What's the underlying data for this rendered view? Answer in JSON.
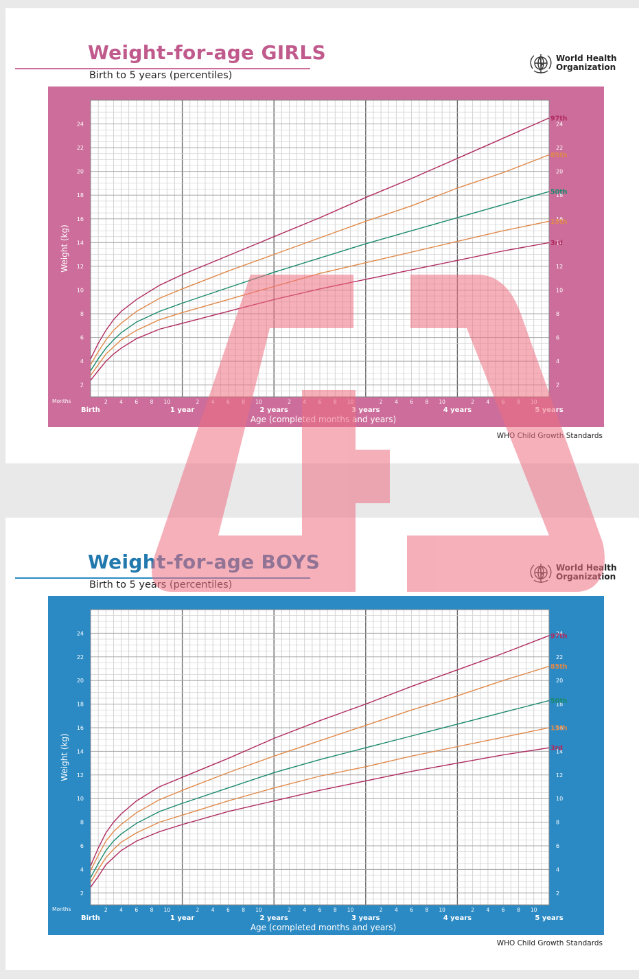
{
  "colors": {
    "girls_accent": "#cc6d9b",
    "girls_title": "#c05a8c",
    "boys_accent": "#2b8ac4",
    "boys_title": "#2179ad",
    "percentile_97": "#b02a5e",
    "percentile_85": "#e0894a",
    "percentile_50": "#1a8a6c",
    "percentile_15": "#e0894a",
    "percentile_3": "#b02a5e",
    "watermark": "#ee6f81"
  },
  "watermark": {
    "icon": "red-logo-watermark-icon"
  },
  "girls": {
    "title": "Weight-for-age GIRLS",
    "subtitle": "Birth to 5 years (percentiles)",
    "org_line1": "World Health",
    "org_line2": "Organization",
    "org_icon": "who-emblem-icon",
    "source": "WHO Child Growth Standards"
  },
  "boys": {
    "title": "Weight-for-age BOYS",
    "subtitle": "Birth to 5 years (percentiles)",
    "org_line1": "World Health",
    "org_line2": "Organization",
    "org_icon": "who-emblem-icon",
    "source": "WHO Child Growth Standards"
  },
  "chart_data": [
    {
      "type": "line",
      "chart": "girls",
      "xlabel": "Age (completed months and years)",
      "ylabel": "Weight (kg)",
      "months_label": "Months",
      "xlim": [
        0,
        60
      ],
      "ylim": [
        1,
        26
      ],
      "yticks": [
        2,
        4,
        6,
        8,
        10,
        12,
        14,
        16,
        18,
        20,
        22,
        24
      ],
      "month_ticks": [
        2,
        4,
        6,
        8,
        10
      ],
      "year_labels": [
        "Birth",
        "1 year",
        "2 years",
        "3 years",
        "4 years",
        "5 years"
      ],
      "grid": true,
      "series": [
        {
          "name": "97th",
          "color_key": "percentile_97",
          "points": [
            [
              0,
              4.2
            ],
            [
              1,
              5.5
            ],
            [
              2,
              6.6
            ],
            [
              3,
              7.5
            ],
            [
              4,
              8.2
            ],
            [
              6,
              9.2
            ],
            [
              9,
              10.4
            ],
            [
              12,
              11.3
            ],
            [
              18,
              12.9
            ],
            [
              24,
              14.5
            ],
            [
              30,
              16.1
            ],
            [
              36,
              17.8
            ],
            [
              42,
              19.4
            ],
            [
              48,
              21.1
            ],
            [
              54,
              22.8
            ],
            [
              60,
              24.5
            ]
          ]
        },
        {
          "name": "85th",
          "color_key": "percentile_85",
          "points": [
            [
              0,
              3.7
            ],
            [
              1,
              4.8
            ],
            [
              2,
              5.8
            ],
            [
              3,
              6.6
            ],
            [
              4,
              7.2
            ],
            [
              6,
              8.2
            ],
            [
              9,
              9.3
            ],
            [
              12,
              10.1
            ],
            [
              18,
              11.6
            ],
            [
              24,
              13.0
            ],
            [
              30,
              14.4
            ],
            [
              36,
              15.8
            ],
            [
              42,
              17.1
            ],
            [
              48,
              18.6
            ],
            [
              54,
              19.9
            ],
            [
              60,
              21.4
            ]
          ]
        },
        {
          "name": "50th",
          "color_key": "percentile_50",
          "points": [
            [
              0,
              3.2
            ],
            [
              1,
              4.2
            ],
            [
              2,
              5.1
            ],
            [
              3,
              5.8
            ],
            [
              4,
              6.4
            ],
            [
              6,
              7.3
            ],
            [
              9,
              8.2
            ],
            [
              12,
              8.9
            ],
            [
              18,
              10.2
            ],
            [
              24,
              11.5
            ],
            [
              30,
              12.7
            ],
            [
              36,
              13.9
            ],
            [
              42,
              15.0
            ],
            [
              48,
              16.1
            ],
            [
              54,
              17.2
            ],
            [
              60,
              18.3
            ]
          ]
        },
        {
          "name": "15th",
          "color_key": "percentile_15",
          "points": [
            [
              0,
              2.8
            ],
            [
              1,
              3.7
            ],
            [
              2,
              4.6
            ],
            [
              3,
              5.2
            ],
            [
              4,
              5.8
            ],
            [
              6,
              6.6
            ],
            [
              9,
              7.5
            ],
            [
              12,
              8.1
            ],
            [
              18,
              9.2
            ],
            [
              24,
              10.3
            ],
            [
              30,
              11.4
            ],
            [
              36,
              12.3
            ],
            [
              42,
              13.2
            ],
            [
              48,
              14.1
            ],
            [
              54,
              15.0
            ],
            [
              60,
              15.8
            ]
          ]
        },
        {
          "name": "3rd",
          "color_key": "percentile_3",
          "points": [
            [
              0,
              2.4
            ],
            [
              1,
              3.2
            ],
            [
              2,
              4.0
            ],
            [
              3,
              4.6
            ],
            [
              4,
              5.1
            ],
            [
              6,
              5.9
            ],
            [
              9,
              6.7
            ],
            [
              12,
              7.2
            ],
            [
              18,
              8.2
            ],
            [
              24,
              9.2
            ],
            [
              30,
              10.1
            ],
            [
              36,
              10.9
            ],
            [
              42,
              11.7
            ],
            [
              48,
              12.5
            ],
            [
              54,
              13.3
            ],
            [
              60,
              14.0
            ]
          ]
        }
      ]
    },
    {
      "type": "line",
      "chart": "boys",
      "xlabel": "Age (completed months and years)",
      "ylabel": "Weight (kg)",
      "months_label": "Months",
      "xlim": [
        0,
        60
      ],
      "ylim": [
        1,
        26
      ],
      "yticks": [
        2,
        4,
        6,
        8,
        10,
        12,
        14,
        16,
        18,
        20,
        22,
        24
      ],
      "month_ticks": [
        2,
        4,
        6,
        8,
        10
      ],
      "year_labels": [
        "Birth",
        "1 year",
        "2 years",
        "3 years",
        "4 years",
        "5 years"
      ],
      "grid": true,
      "series": [
        {
          "name": "97th",
          "color_key": "percentile_97",
          "points": [
            [
              0,
              4.3
            ],
            [
              1,
              5.8
            ],
            [
              2,
              7.1
            ],
            [
              3,
              8.0
            ],
            [
              4,
              8.7
            ],
            [
              6,
              9.8
            ],
            [
              9,
              11.0
            ],
            [
              12,
              11.8
            ],
            [
              18,
              13.4
            ],
            [
              24,
              15.1
            ],
            [
              30,
              16.6
            ],
            [
              36,
              18.0
            ],
            [
              42,
              19.5
            ],
            [
              48,
              20.9
            ],
            [
              54,
              22.3
            ],
            [
              60,
              23.8
            ]
          ]
        },
        {
          "name": "85th",
          "color_key": "percentile_85",
          "points": [
            [
              0,
              3.9
            ],
            [
              1,
              5.2
            ],
            [
              2,
              6.4
            ],
            [
              3,
              7.2
            ],
            [
              4,
              7.8
            ],
            [
              6,
              8.8
            ],
            [
              9,
              9.9
            ],
            [
              12,
              10.7
            ],
            [
              18,
              12.2
            ],
            [
              24,
              13.6
            ],
            [
              30,
              14.9
            ],
            [
              36,
              16.2
            ],
            [
              42,
              17.5
            ],
            [
              48,
              18.7
            ],
            [
              54,
              20.0
            ],
            [
              60,
              21.2
            ]
          ]
        },
        {
          "name": "50th",
          "color_key": "percentile_50",
          "points": [
            [
              0,
              3.3
            ],
            [
              1,
              4.5
            ],
            [
              2,
              5.6
            ],
            [
              3,
              6.4
            ],
            [
              4,
              7.0
            ],
            [
              6,
              7.9
            ],
            [
              9,
              8.9
            ],
            [
              12,
              9.6
            ],
            [
              18,
              10.9
            ],
            [
              24,
              12.2
            ],
            [
              30,
              13.3
            ],
            [
              36,
              14.3
            ],
            [
              42,
              15.3
            ],
            [
              48,
              16.3
            ],
            [
              54,
              17.3
            ],
            [
              60,
              18.3
            ]
          ]
        },
        {
          "name": "15th",
          "color_key": "percentile_15",
          "points": [
            [
              0,
              2.9
            ],
            [
              1,
              4.0
            ],
            [
              2,
              5.0
            ],
            [
              3,
              5.7
            ],
            [
              4,
              6.3
            ],
            [
              6,
              7.1
            ],
            [
              9,
              8.0
            ],
            [
              12,
              8.6
            ],
            [
              18,
              9.8
            ],
            [
              24,
              10.9
            ],
            [
              30,
              11.9
            ],
            [
              36,
              12.7
            ],
            [
              42,
              13.6
            ],
            [
              48,
              14.4
            ],
            [
              54,
              15.2
            ],
            [
              60,
              16.0
            ]
          ]
        },
        {
          "name": "3rd",
          "color_key": "percentile_3",
          "points": [
            [
              0,
              2.5
            ],
            [
              1,
              3.4
            ],
            [
              2,
              4.4
            ],
            [
              3,
              5.0
            ],
            [
              4,
              5.6
            ],
            [
              6,
              6.4
            ],
            [
              9,
              7.2
            ],
            [
              12,
              7.8
            ],
            [
              18,
              8.9
            ],
            [
              24,
              9.8
            ],
            [
              30,
              10.7
            ],
            [
              36,
              11.5
            ],
            [
              42,
              12.3
            ],
            [
              48,
              13.0
            ],
            [
              54,
              13.7
            ],
            [
              60,
              14.3
            ]
          ]
        }
      ]
    }
  ]
}
